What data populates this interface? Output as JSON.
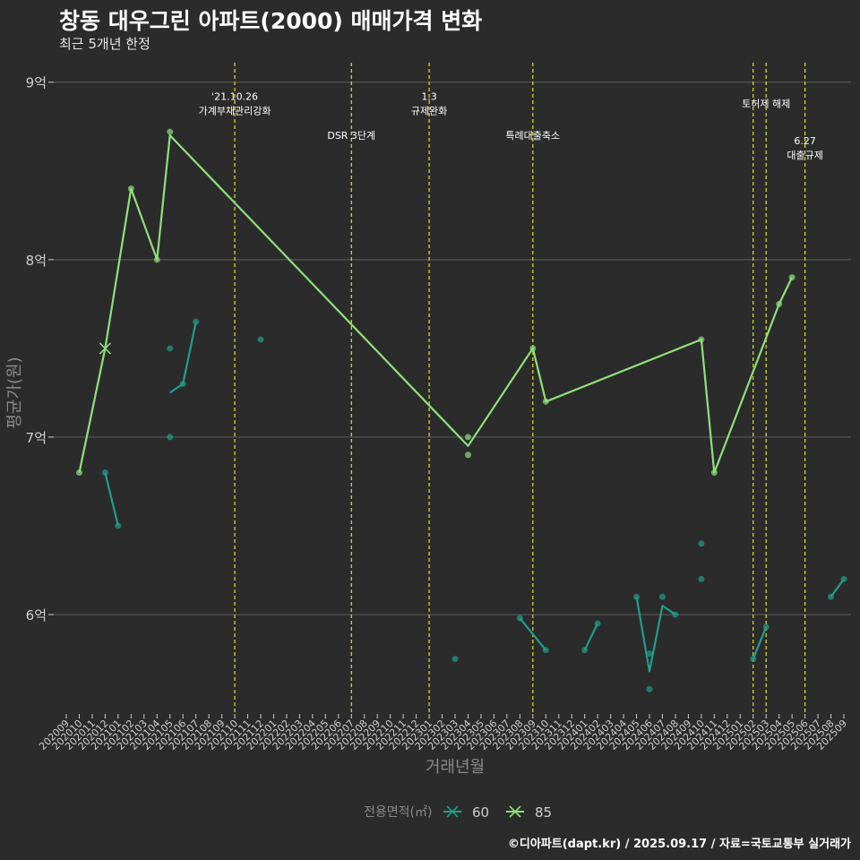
{
  "header": {
    "title": "창동 대우그린 아파트(2000) 매매가격 변화",
    "subtitle": "최근 5개년 한정"
  },
  "caption": "©디아파트(dapt.kr) / 2025.09.17 / 자료=국토교통부 실거래가",
  "colors": {
    "background": "#2b2b2b",
    "grid": "#5e5e5e",
    "series_60": "#1f9e89",
    "series_85": "#8fe07a",
    "event_line": "#e3e32a",
    "axis_text": "#cfcfcf",
    "axis_title": "#8a8a8a"
  },
  "chart_data": {
    "type": "line",
    "title": "창동 대우그린 아파트(2000) 매매가격 변화",
    "subtitle": "최근 5개년 한정",
    "xlabel": "거래년월",
    "ylabel": "평균가(원)",
    "x_ticks": [
      "202009",
      "202010",
      "202011",
      "202012",
      "202101",
      "202102",
      "202103",
      "202104",
      "202105",
      "202106",
      "202107",
      "202108",
      "202109",
      "202110",
      "202111",
      "202112",
      "202201",
      "202202",
      "202203",
      "202204",
      "202205",
      "202206",
      "202207",
      "202208",
      "202209",
      "202210",
      "202211",
      "202212",
      "202301",
      "202302",
      "202303",
      "202304",
      "202305",
      "202306",
      "202307",
      "202308",
      "202309",
      "202310",
      "202311",
      "202312",
      "202401",
      "202402",
      "202403",
      "202404",
      "202405",
      "202406",
      "202407",
      "202408",
      "202409",
      "202410",
      "202411",
      "202412",
      "202501",
      "202502",
      "202503",
      "202504",
      "202505",
      "202506",
      "202507",
      "202508",
      "202509"
    ],
    "y_ticks": [
      {
        "value": 6.0,
        "label": "6억"
      },
      {
        "value": 7.0,
        "label": "7억"
      },
      {
        "value": 8.0,
        "label": "8억"
      },
      {
        "value": 9.0,
        "label": "9억"
      }
    ],
    "y_unit": "억",
    "ylim": [
      5.45,
      9.15
    ],
    "grid": true,
    "legend": {
      "title": "전용면적(㎡)",
      "position": "bottom",
      "entries": [
        "60",
        "85"
      ]
    },
    "events": [
      {
        "x": "202110",
        "label_lines": [
          "'21.10.26",
          "가계부채관리강화"
        ],
        "label_y": 8.92
      },
      {
        "x": "202207",
        "label_lines": [
          "DSR 3단계"
        ],
        "label_y": 8.7
      },
      {
        "x": "202301",
        "label_lines": [
          "1.3",
          "규제완화"
        ],
        "label_y": 8.92
      },
      {
        "x": "202309",
        "label_lines": [
          "특례대출축소"
        ],
        "label_y": 8.7
      },
      {
        "x": "202502",
        "label_lines": [],
        "label_y": 8.88
      },
      {
        "x": "202503",
        "label_lines": [
          "토허제 해제"
        ],
        "label_y": 8.88
      },
      {
        "x": "202506",
        "label_lines": [
          "6.27",
          "대출규제"
        ],
        "label_y": 8.67
      }
    ],
    "series": [
      {
        "name": "60",
        "line": [
          [
            "202012",
            6.8
          ],
          [
            "202101",
            6.5
          ],
          [
            "202105",
            7.25
          ],
          [
            "202106",
            7.3
          ],
          [
            "202107",
            7.65
          ],
          [
            "202308",
            5.98
          ],
          [
            "202310",
            5.8
          ],
          [
            "202401",
            5.8
          ],
          [
            "202402",
            5.95
          ],
          [
            "202405",
            6.1
          ],
          [
            "202406",
            5.68
          ],
          [
            "202407",
            6.05
          ],
          [
            "202408",
            6.0
          ],
          [
            "202502",
            5.75
          ],
          [
            "202503",
            5.93
          ],
          [
            "202508",
            6.1
          ],
          [
            "202509",
            6.2
          ]
        ],
        "points": [
          [
            "202012",
            6.8
          ],
          [
            "202101",
            6.5
          ],
          [
            "202105",
            7.5
          ],
          [
            "202105",
            7.0
          ],
          [
            "202106",
            7.3
          ],
          [
            "202107",
            7.65
          ],
          [
            "202112",
            7.55
          ],
          [
            "202303",
            5.75
          ],
          [
            "202308",
            5.98
          ],
          [
            "202310",
            5.8
          ],
          [
            "202401",
            5.8
          ],
          [
            "202402",
            5.95
          ],
          [
            "202405",
            6.1
          ],
          [
            "202406",
            5.78
          ],
          [
            "202406",
            5.58
          ],
          [
            "202407",
            6.1
          ],
          [
            "202408",
            6.0
          ],
          [
            "202410",
            6.4
          ],
          [
            "202410",
            6.2
          ],
          [
            "202502",
            5.75
          ],
          [
            "202503",
            5.93
          ],
          [
            "202508",
            6.1
          ],
          [
            "202509",
            6.2
          ]
        ]
      },
      {
        "name": "85",
        "line": [
          [
            "202010",
            6.8
          ],
          [
            "202012",
            7.5
          ],
          [
            "202102",
            8.4
          ],
          [
            "202104",
            8.0
          ],
          [
            "202105",
            8.7
          ],
          [
            "202304",
            6.95
          ],
          [
            "202309",
            7.5
          ],
          [
            "202310",
            7.2
          ],
          [
            "202410",
            7.55
          ],
          [
            "202411",
            6.8
          ],
          [
            "202504",
            7.75
          ],
          [
            "202505",
            7.9
          ]
        ],
        "points": [
          [
            "202010",
            6.8
          ],
          [
            "202102",
            8.4
          ],
          [
            "202104",
            8.0
          ],
          [
            "202105",
            8.72
          ],
          [
            "202304",
            7.0
          ],
          [
            "202304",
            6.9
          ],
          [
            "202309",
            7.5
          ],
          [
            "202310",
            7.2
          ],
          [
            "202410",
            7.55
          ],
          [
            "202411",
            6.8
          ],
          [
            "202504",
            7.75
          ],
          [
            "202505",
            7.9
          ]
        ],
        "cross_markers": [
          [
            "202012",
            7.5
          ]
        ]
      }
    ]
  }
}
